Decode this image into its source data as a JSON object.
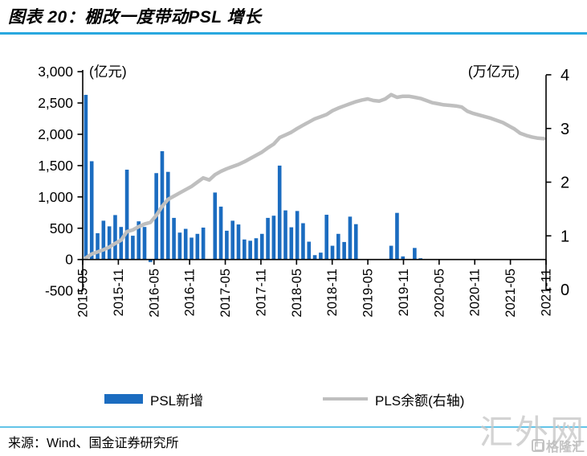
{
  "header": {
    "title": "图表 20：棚改一度带动PSL 增长"
  },
  "legend": {
    "bar_label": "PSL新增",
    "line_label": "PLS余额(右轴)"
  },
  "footer": {
    "source": "来源：Wind、国金证券研究所"
  },
  "watermark": {
    "large": "汇外网",
    "small": "格隆汇"
  },
  "colors": {
    "bar": "#1b6cc0",
    "line": "#bfbfbf",
    "axis": "#000000",
    "divider_top": "#29a8df",
    "divider_bottom": "#63c4e8",
    "watermark": "#c9c9c9"
  },
  "chart_data": {
    "type": "bar",
    "subtype": "combo-bar-line-dual-axis",
    "frequency": "monthly",
    "x_start": "2015-05",
    "x_end": "2021-11",
    "x_tick_labels": [
      "2015-05",
      "2015-11",
      "2016-05",
      "2016-11",
      "2017-05",
      "2017-11",
      "2018-05",
      "2018-11",
      "2019-05",
      "2019-11",
      "2020-05",
      "2020-11",
      "2021-05",
      "2021-11"
    ],
    "left_axis": {
      "title": "(亿元)",
      "min": -500,
      "max": 3000,
      "step": 500,
      "tick_labels": [
        "3,000",
        "2,500",
        "2,000",
        "1,500",
        "1,000",
        "500",
        "0",
        "-500"
      ],
      "tick_values": [
        3000,
        2500,
        2000,
        1500,
        1000,
        500,
        0,
        -500
      ]
    },
    "right_axis": {
      "title": "(万亿元)",
      "min": 0,
      "max": 4,
      "step": 1,
      "tick_labels": [
        "4",
        "3",
        "2",
        "1",
        "0"
      ],
      "tick_values": [
        4,
        3,
        2,
        1,
        0
      ]
    },
    "grid": false,
    "legend_position": "bottom",
    "series": [
      {
        "name": "PSL新增",
        "type": "bar",
        "axis": "left",
        "color": "#1b6cc0",
        "values": [
          2630,
          1570,
          420,
          620,
          530,
          710,
          520,
          1435,
          380,
          610,
          520,
          -40,
          1380,
          1730,
          1400,
          665,
          430,
          490,
          350,
          410,
          510,
          0,
          1070,
          845,
          460,
          620,
          560,
          320,
          300,
          340,
          410,
          665,
          700,
          1500,
          785,
          515,
          775,
          580,
          285,
          70,
          110,
          715,
          220,
          410,
          280,
          685,
          565,
          0,
          0,
          0,
          0,
          0,
          220,
          745,
          50,
          0,
          185,
          20,
          0,
          0,
          0,
          0,
          0,
          0,
          0,
          0,
          0,
          0,
          0,
          0,
          0,
          0,
          0,
          0,
          0,
          0,
          0,
          0,
          0
        ]
      },
      {
        "name": "PLS余额(右轴)",
        "type": "line",
        "axis": "right",
        "color": "#bfbfbf",
        "values": [
          0.59,
          0.66,
          0.7,
          0.74,
          0.79,
          0.86,
          0.92,
          1.08,
          1.11,
          1.17,
          1.22,
          1.25,
          1.38,
          1.55,
          1.68,
          1.74,
          1.8,
          1.86,
          1.92,
          2.0,
          2.08,
          2.04,
          2.14,
          2.2,
          2.25,
          2.29,
          2.33,
          2.38,
          2.44,
          2.5,
          2.56,
          2.64,
          2.71,
          2.83,
          2.88,
          2.93,
          3.0,
          3.06,
          3.12,
          3.18,
          3.22,
          3.26,
          3.33,
          3.38,
          3.42,
          3.46,
          3.5,
          3.53,
          3.55,
          3.52,
          3.51,
          3.55,
          3.63,
          3.58,
          3.6,
          3.6,
          3.58,
          3.56,
          3.52,
          3.48,
          3.46,
          3.44,
          3.43,
          3.42,
          3.4,
          3.32,
          3.28,
          3.25,
          3.22,
          3.19,
          3.15,
          3.11,
          3.05,
          2.99,
          2.91,
          2.87,
          2.84,
          2.82,
          2.81
        ]
      }
    ]
  }
}
